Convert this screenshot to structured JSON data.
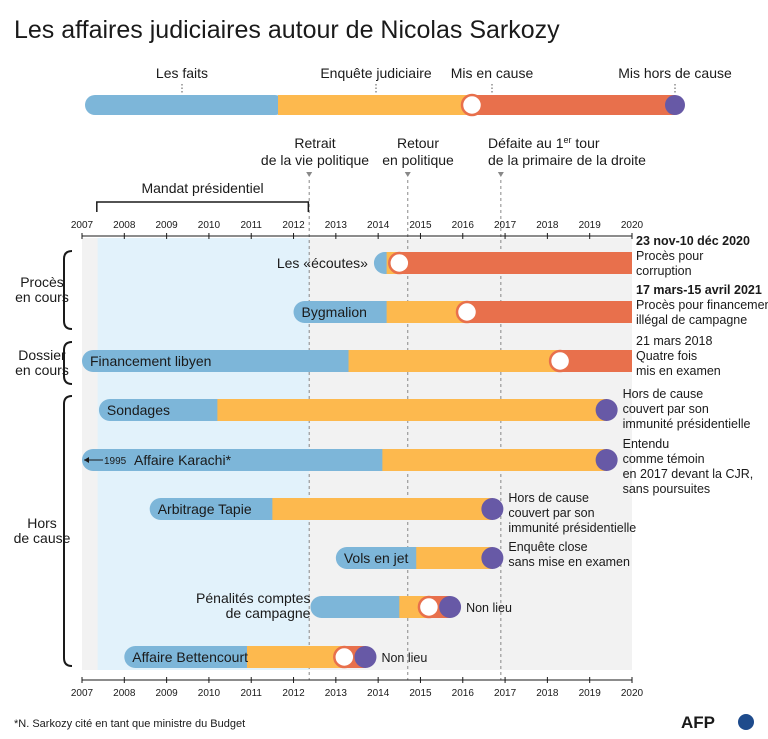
{
  "title": "Les affaires judiciaires autour de Nicolas Sarkozy",
  "legend": {
    "faits": "Les faits",
    "enquete": "Enquête judiciaire",
    "mis_en_cause": "Mis en cause",
    "hors_de_cause": "Mis hors de cause"
  },
  "events": {
    "retrait": [
      "Retrait",
      "de la vie politique"
    ],
    "retour": [
      "Retour",
      "en politique"
    ],
    "defaite_l1": "Défaite au 1",
    "defaite_sup": "er",
    "defaite_l1b": " tour",
    "defaite_l2": "de la primaire de la droite"
  },
  "mandat_label": "Mandat présidentiel",
  "groups": {
    "proces": [
      "Procès",
      "en cours"
    ],
    "dossier": [
      "Dossier",
      "en cours"
    ],
    "hors": [
      "Hors",
      "de cause"
    ]
  },
  "footnote": "*N. Sarkozy cité en tant que ministre du Budget",
  "logo": "AFP",
  "colors": {
    "faits": "#7db6d9",
    "enquete": "#fdb94e",
    "mis_en_cause": "#e8704c",
    "hors_de_cause": "#6759a6",
    "mandat": "#e2f2fb",
    "grey_zone": "#f2f2f2"
  },
  "chart_data": {
    "type": "timeline",
    "x_axis": {
      "min": 2007,
      "max": 2020,
      "ticks": [
        2007,
        2008,
        2009,
        2010,
        2011,
        2012,
        2013,
        2014,
        2015,
        2016,
        2017,
        2018,
        2019,
        2020
      ]
    },
    "mandat": {
      "start": 2007.37,
      "end": 2012.37
    },
    "event_markers": [
      2012.37,
      2014.7,
      2016.9
    ],
    "affairs": [
      {
        "name": "Les «écoutes»",
        "label_outside": true,
        "start": 2013.9,
        "enquete_start": 2014.2,
        "mis_en_cause": 2014.5,
        "end": 2020,
        "hors_de_cause": null,
        "note_bold": "23 nov-10 déc 2020",
        "note": [
          "Procès pour",
          "corruption"
        ]
      },
      {
        "name": "Bygmalion",
        "label_outside": false,
        "start": 2012.0,
        "enquete_start": 2014.2,
        "mis_en_cause": 2016.1,
        "end": 2020,
        "hors_de_cause": null,
        "note_bold": "17 mars-15 avril 2021",
        "note": [
          "Procès pour financement",
          "illégal de campagne"
        ]
      },
      {
        "name": "Financement libyen",
        "label_outside": false,
        "start": 2007.0,
        "enquete_start": 2013.3,
        "mis_en_cause": 2018.3,
        "end": 2020,
        "hors_de_cause": null,
        "note_bold": "",
        "note": [
          "21 mars 2018",
          "Quatre fois",
          "mis en examen"
        ]
      },
      {
        "name": "Sondages",
        "label_outside": false,
        "start": 2007.4,
        "enquete_start": 2010.2,
        "mis_en_cause": null,
        "end": 2019.4,
        "hors_de_cause": 2019.4,
        "note_bold": "",
        "note": [
          "Hors de cause",
          "couvert par son",
          "immunité présidentielle"
        ]
      },
      {
        "name": "Affaire Karachi*",
        "label_outside": false,
        "start": 2007.0,
        "start_label": "1995",
        "enquete_start": 2014.1,
        "mis_en_cause": null,
        "end": 2019.4,
        "hors_de_cause": 2019.4,
        "note_bold": "",
        "note": [
          "Entendu",
          "comme témoin",
          "en 2017 devant la CJR,",
          "sans poursuites"
        ]
      },
      {
        "name": "Arbitrage Tapie",
        "label_outside": false,
        "start": 2008.6,
        "enquete_start": 2011.5,
        "mis_en_cause": null,
        "end": 2016.7,
        "hors_de_cause": 2016.7,
        "note_bold": "",
        "note": [
          "Hors de cause",
          "couvert par son",
          "immunité présidentielle"
        ]
      },
      {
        "name": "Vols en jet",
        "label_outside": false,
        "start": 2013.0,
        "enquete_start": 2014.9,
        "mis_en_cause": null,
        "end": 2016.7,
        "hors_de_cause": 2016.7,
        "note_bold": "",
        "note": [
          "Enquête close",
          "sans mise en examen"
        ]
      },
      {
        "name": [
          "Pénalités comptes",
          "de campagne"
        ],
        "label_outside": true,
        "start": 2012.4,
        "enquete_start": 2014.5,
        "mis_en_cause": 2015.2,
        "end": 2015.7,
        "hors_de_cause": 2015.7,
        "note_bold": "",
        "note": [
          "Non lieu"
        ]
      },
      {
        "name": "Affaire Bettencourt",
        "label_outside": false,
        "start": 2008.0,
        "enquete_start": 2010.9,
        "mis_en_cause": 2013.2,
        "end": 2013.7,
        "hors_de_cause": 2013.7,
        "note_bold": "",
        "note": [
          "Non lieu"
        ]
      }
    ]
  }
}
